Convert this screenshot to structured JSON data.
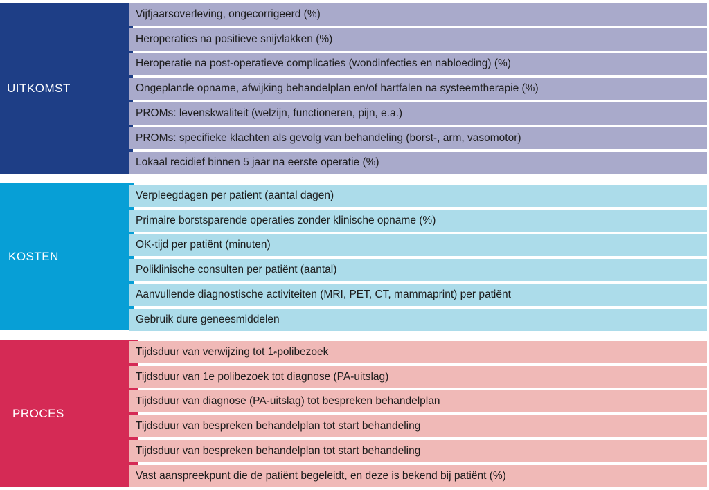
{
  "sections": [
    {
      "label": "UITKOMST",
      "label_color": "#1e3e86",
      "row_color": "#a9aacb",
      "items": [
        "Vijfjaarsoverleving, ongecorrigeerd (%)",
        "Heroperaties na positieve snijvlakken (%)",
        "Heroperatie na post-operatieve complicaties (wondinfecties en nabloeding) (%)",
        "Ongeplande opname, afwijking behandelplan en/of hartfalen na systeemtherapie (%)",
        "PROMs: levenskwaliteit (welzijn, functioneren, pijn, e.a.)",
        "PROMs: specifieke klachten als gevolg van behandeling (borst-, arm, vasomotor)",
        "Lokaal recidief binnen 5 jaar na eerste operatie (%)"
      ]
    },
    {
      "label": "KOSTEN",
      "label_color": "#079fd6",
      "row_color": "#acdcea",
      "items": [
        "Verpleegdagen per patient (aantal dagen)",
        "Primaire borstsparende operaties zonder klinische opname (%)",
        "OK-tijd per patiënt (minuten)",
        "Poliklinische consulten per patiënt (aantal)",
        "Aanvullende diagnostische activiteiten (MRI, PET, CT, mammaprint) per patiënt",
        "Gebruik dure geneesmiddelen"
      ]
    },
    {
      "label": "PROCES",
      "label_color": "#d52a55",
      "row_color": "#f0b9b7",
      "items": [
        {
          "text": "Tijdsduur van verwijzing tot 1",
          "sup": "e",
          "after": " polibezoek"
        },
        "Tijdsduur van 1e polibezoek tot diagnose (PA-uitslag)",
        "Tijdsduur van diagnose (PA-uitslag) tot bespreken behandelplan",
        "Tijdsduur van bespreken behandelplan tot start behandeling",
        "Tijdsduur van bespreken behandelplan tot start behandeling",
        "Vast aanspreekpunt die de patiënt begeleidt, en deze is bekend bij patiënt (%)"
      ]
    }
  ]
}
